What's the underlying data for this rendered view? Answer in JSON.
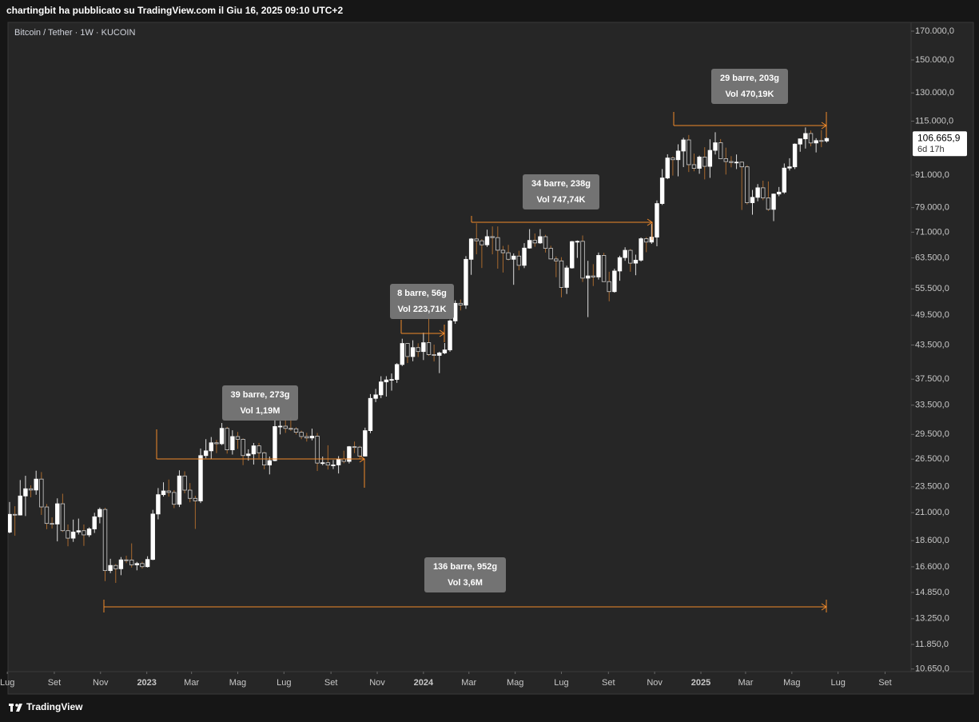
{
  "header": "chartingbit ha pubblicato su TradingView.com il Giu 16, 2025 09:10 UTC+2",
  "footer": "TradingView",
  "chart_data": {
    "type": "candlestick",
    "title": "Bitcoin / Tether · 1W · KUCOIN",
    "log_scale": true,
    "grid": false,
    "up_color": "#ffffff",
    "down_color": "#232323",
    "down_wick_color": "#a8692e",
    "annotation_color": "#f0892a",
    "xlim": [
      -0.3,
      169.9
    ],
    "ylim": [
      10530,
      176600
    ],
    "xticks": [
      {
        "value": -0.43,
        "label": "Lug"
      },
      {
        "value": 8.43,
        "label": "Set"
      },
      {
        "value": 17.14,
        "label": "Nov"
      },
      {
        "value": 25.86,
        "label": "2023"
      },
      {
        "value": 34.29,
        "label": "Mar"
      },
      {
        "value": 43.0,
        "label": "Mag"
      },
      {
        "value": 51.71,
        "label": "Lug"
      },
      {
        "value": 60.57,
        "label": "Set"
      },
      {
        "value": 69.29,
        "label": "Nov"
      },
      {
        "value": 78.0,
        "label": "2024"
      },
      {
        "value": 86.57,
        "label": "Mar"
      },
      {
        "value": 95.29,
        "label": "Mag"
      },
      {
        "value": 104.0,
        "label": "Lug"
      },
      {
        "value": 112.86,
        "label": "Set"
      },
      {
        "value": 121.57,
        "label": "Nov"
      },
      {
        "value": 130.29,
        "label": "2025"
      },
      {
        "value": 138.71,
        "label": "Mar"
      },
      {
        "value": 147.43,
        "label": "Mag"
      },
      {
        "value": 156.14,
        "label": "Lug"
      },
      {
        "value": 165.0,
        "label": "Set"
      }
    ],
    "yticks": [
      {
        "value": 170000,
        "label": "170.000,0"
      },
      {
        "value": 150000,
        "label": "150.000,0"
      },
      {
        "value": 130000,
        "label": "130.000,0"
      },
      {
        "value": 115000,
        "label": "115.000,0"
      },
      {
        "value": 91000,
        "label": "91.000,0"
      },
      {
        "value": 79000,
        "label": "79.000,0"
      },
      {
        "value": 71000,
        "label": "71.000,0"
      },
      {
        "value": 63500,
        "label": "63.500,0"
      },
      {
        "value": 55500,
        "label": "55.500,0"
      },
      {
        "value": 49500,
        "label": "49.500,0"
      },
      {
        "value": 43500,
        "label": "43.500,0"
      },
      {
        "value": 37500,
        "label": "37.500,0"
      },
      {
        "value": 33500,
        "label": "33.500,0"
      },
      {
        "value": 29500,
        "label": "29.500,0"
      },
      {
        "value": 26500,
        "label": "26.500,0"
      },
      {
        "value": 23500,
        "label": "23.500,0"
      },
      {
        "value": 21000,
        "label": "21.000,0"
      },
      {
        "value": 18600,
        "label": "18.600,0"
      },
      {
        "value": 16600,
        "label": "16.600,0"
      },
      {
        "value": 14850,
        "label": "14.850,0"
      },
      {
        "value": 13250,
        "label": "13.250,0"
      },
      {
        "value": 11850,
        "label": "11.850,0"
      },
      {
        "value": 10650,
        "label": "10.650,0"
      }
    ],
    "price_tag": {
      "value": 106665.9,
      "label": "106.665,9"
    },
    "countdown": "6d 17h",
    "annotations": [
      [
        "29 barre, 203g",
        "Vol 470,19K"
      ],
      [
        "34 barre, 238g",
        "Vol 747,74K"
      ],
      [
        "8 barre, 56g",
        "Vol 223,71K"
      ],
      [
        "39 barre, 273g",
        "Vol 1,19M"
      ],
      [
        "136 barre, 952g",
        "Vol 3,6M"
      ]
    ],
    "candles": [
      [
        19300,
        22000,
        19200,
        20850
      ],
      [
        20850,
        21600,
        19000,
        20790
      ],
      [
        20790,
        24200,
        20750,
        22580
      ],
      [
        22580,
        24650,
        20700,
        23300
      ],
      [
        23300,
        23650,
        22450,
        23170
      ],
      [
        23170,
        25200,
        22700,
        24300
      ],
      [
        24300,
        25050,
        20800,
        21530
      ],
      [
        21530,
        21800,
        19550,
        20040
      ],
      [
        20040,
        20580,
        19600,
        19990
      ],
      [
        19990,
        22350,
        18540,
        21830
      ],
      [
        21830,
        22800,
        19320,
        19420
      ],
      [
        19420,
        19950,
        18150,
        18800
      ],
      [
        18800,
        20380,
        18500,
        19310
      ],
      [
        19310,
        20470,
        19100,
        19420
      ],
      [
        19420,
        19950,
        18180,
        19070
      ],
      [
        19070,
        19700,
        18900,
        19570
      ],
      [
        19570,
        20990,
        19230,
        20630
      ],
      [
        20630,
        21470,
        20050,
        21300
      ],
      [
        21300,
        21450,
        15600,
        16330
      ],
      [
        16330,
        17190,
        16150,
        16700
      ],
      [
        16700,
        16800,
        15480,
        16460
      ],
      [
        16460,
        17320,
        16010,
        17110
      ],
      [
        17110,
        17420,
        16870,
        17100
      ],
      [
        17100,
        18380,
        16550,
        16740
      ],
      [
        16740,
        16960,
        16350,
        16840
      ],
      [
        16840,
        16970,
        16480,
        16610
      ],
      [
        16610,
        17380,
        16550,
        17140
      ],
      [
        17140,
        21260,
        17090,
        20880
      ],
      [
        20880,
        23370,
        20400,
        22710
      ],
      [
        22710,
        23960,
        22520,
        23080
      ],
      [
        23080,
        24250,
        22520,
        22930
      ],
      [
        22930,
        23160,
        21420,
        21780
      ],
      [
        21780,
        25240,
        21520,
        24630
      ],
      [
        24630,
        25130,
        22850,
        23160
      ],
      [
        23160,
        23880,
        21970,
        22350
      ],
      [
        22350,
        22600,
        19570,
        22100
      ],
      [
        22100,
        27750,
        21900,
        26910
      ],
      [
        26910,
        28900,
        26600,
        27470
      ],
      [
        27470,
        29170,
        26530,
        28450
      ],
      [
        28450,
        28800,
        27200,
        28330
      ],
      [
        28330,
        31000,
        28170,
        30290
      ],
      [
        30290,
        30490,
        27140,
        27590
      ],
      [
        27590,
        30040,
        27030,
        29230
      ],
      [
        29230,
        29820,
        27700,
        28880
      ],
      [
        28880,
        29000,
        25820,
        26910
      ],
      [
        26910,
        27650,
        26330,
        27100
      ],
      [
        27100,
        28430,
        25880,
        28070
      ],
      [
        28070,
        28430,
        26600,
        27240
      ],
      [
        27240,
        27360,
        25350,
        25830
      ],
      [
        25830,
        26800,
        24800,
        26330
      ],
      [
        26330,
        31430,
        26250,
        30530
      ],
      [
        30530,
        31280,
        29500,
        30580
      ],
      [
        30580,
        31500,
        29700,
        30280
      ],
      [
        30280,
        31800,
        29950,
        30230
      ],
      [
        30230,
        30440,
        29500,
        29780
      ],
      [
        29780,
        29990,
        28900,
        29230
      ],
      [
        29230,
        29700,
        28600,
        29050
      ],
      [
        29050,
        30250,
        28750,
        29280
      ],
      [
        29280,
        29690,
        25170,
        26050
      ],
      [
        26050,
        26800,
        25800,
        26090
      ],
      [
        26090,
        28140,
        25330,
        25820
      ],
      [
        25820,
        26400,
        25380,
        25840
      ],
      [
        25840,
        26850,
        24900,
        26530
      ],
      [
        26530,
        27490,
        26030,
        26240
      ],
      [
        26240,
        28050,
        26000,
        27970
      ],
      [
        27970,
        28600,
        27200,
        27920
      ],
      [
        27920,
        28070,
        26540,
        26850
      ],
      [
        26850,
        30380,
        26800,
        29990
      ],
      [
        29990,
        35150,
        29660,
        34500
      ],
      [
        34500,
        35950,
        33940,
        35030
      ],
      [
        35030,
        37980,
        34530,
        37060
      ],
      [
        37060,
        37990,
        34770,
        37380
      ],
      [
        37380,
        38440,
        35680,
        37450
      ],
      [
        37450,
        40200,
        36900,
        39970
      ],
      [
        39970,
        44700,
        39700,
        43790
      ],
      [
        43790,
        43850,
        40230,
        41370
      ],
      [
        41370,
        44400,
        40540,
        43010
      ],
      [
        43010,
        43820,
        41300,
        42280
      ],
      [
        42280,
        45900,
        40750,
        43940
      ],
      [
        43940,
        49000,
        41500,
        41730
      ],
      [
        41730,
        43580,
        40500,
        41580
      ],
      [
        41580,
        42250,
        38500,
        42030
      ],
      [
        42030,
        43880,
        41800,
        42580
      ],
      [
        42580,
        48580,
        42250,
        48300
      ],
      [
        48300,
        52820,
        47700,
        52140
      ],
      [
        52140,
        52990,
        50550,
        51730
      ],
      [
        51730,
        64000,
        50900,
        63110
      ],
      [
        63110,
        69200,
        59000,
        68950
      ],
      [
        68950,
        73780,
        64500,
        68390
      ],
      [
        68390,
        68900,
        60780,
        67210
      ],
      [
        67210,
        71780,
        66600,
        69650
      ],
      [
        69650,
        72800,
        64500,
        69360
      ],
      [
        69360,
        72800,
        60600,
        65660
      ],
      [
        65660,
        66900,
        59600,
        64940
      ],
      [
        64940,
        67200,
        62800,
        63120
      ],
      [
        63120,
        64750,
        56500,
        64010
      ],
      [
        64010,
        65500,
        60200,
        61480
      ],
      [
        61480,
        67700,
        60750,
        66270
      ],
      [
        66270,
        71950,
        66100,
        68510
      ],
      [
        68510,
        70600,
        66650,
        67760
      ],
      [
        67760,
        71950,
        67500,
        69640
      ],
      [
        69640,
        70200,
        65000,
        66190
      ],
      [
        66190,
        66950,
        63100,
        63210
      ],
      [
        63210,
        63900,
        58400,
        62680
      ],
      [
        62680,
        63700,
        53500,
        55860
      ],
      [
        55860,
        61400,
        54300,
        60800
      ],
      [
        60800,
        68350,
        60600,
        68160
      ],
      [
        68160,
        68500,
        63500,
        68250
      ],
      [
        68250,
        70000,
        57200,
        58160
      ],
      [
        58160,
        62700,
        49100,
        58720
      ],
      [
        58720,
        61800,
        56200,
        58450
      ],
      [
        58450,
        65000,
        57800,
        64190
      ],
      [
        64190,
        64900,
        57200,
        57290
      ],
      [
        57290,
        59800,
        52600,
        54850
      ],
      [
        54850,
        60600,
        54600,
        59990
      ],
      [
        59990,
        64100,
        57500,
        63580
      ],
      [
        63580,
        66500,
        62700,
        65630
      ],
      [
        65630,
        66000,
        59800,
        62070
      ],
      [
        62070,
        64400,
        58900,
        62880
      ],
      [
        62880,
        69400,
        62500,
        69010
      ],
      [
        69010,
        69500,
        65100,
        68020
      ],
      [
        68020,
        73600,
        67500,
        69490
      ],
      [
        69490,
        81500,
        66800,
        80410
      ],
      [
        80410,
        93400,
        79900,
        89850
      ],
      [
        89850,
        99600,
        89400,
        98000
      ],
      [
        98000,
        98700,
        90800,
        97270
      ],
      [
        97270,
        104000,
        90500,
        101000
      ],
      [
        101000,
        107000,
        94200,
        106000
      ],
      [
        106000,
        108300,
        92200,
        95200
      ],
      [
        95200,
        99900,
        92500,
        93700
      ],
      [
        93700,
        99000,
        91500,
        98400
      ],
      [
        98400,
        102700,
        89300,
        94500
      ],
      [
        94500,
        106300,
        89900,
        101300
      ],
      [
        101300,
        109600,
        99500,
        104700
      ],
      [
        104700,
        106400,
        97500,
        97700
      ],
      [
        97700,
        102500,
        91200,
        96500
      ],
      [
        96500,
        98800,
        94100,
        96100
      ],
      [
        96100,
        99500,
        93400,
        96250
      ],
      [
        96250,
        96500,
        78200,
        94300
      ],
      [
        94300,
        95000,
        80100,
        80700
      ],
      [
        80700,
        85300,
        76600,
        82600
      ],
      [
        82600,
        87500,
        81200,
        86100
      ],
      [
        86100,
        88800,
        81600,
        82400
      ],
      [
        82400,
        88500,
        77900,
        78400
      ],
      [
        78400,
        84000,
        74500,
        83800
      ],
      [
        83800,
        86400,
        83000,
        84500
      ],
      [
        84500,
        95700,
        83900,
        93800
      ],
      [
        93800,
        97900,
        92800,
        94300
      ],
      [
        94300,
        104400,
        93400,
        104100
      ],
      [
        104100,
        105800,
        100700,
        106500
      ],
      [
        106500,
        111900,
        102100,
        109000
      ],
      [
        109000,
        110400,
        103100,
        104600
      ],
      [
        104600,
        106800,
        100400,
        105700
      ],
      [
        105700,
        110600,
        102700,
        105500
      ],
      [
        105500,
        107200,
        104800,
        106665.9
      ]
    ]
  }
}
